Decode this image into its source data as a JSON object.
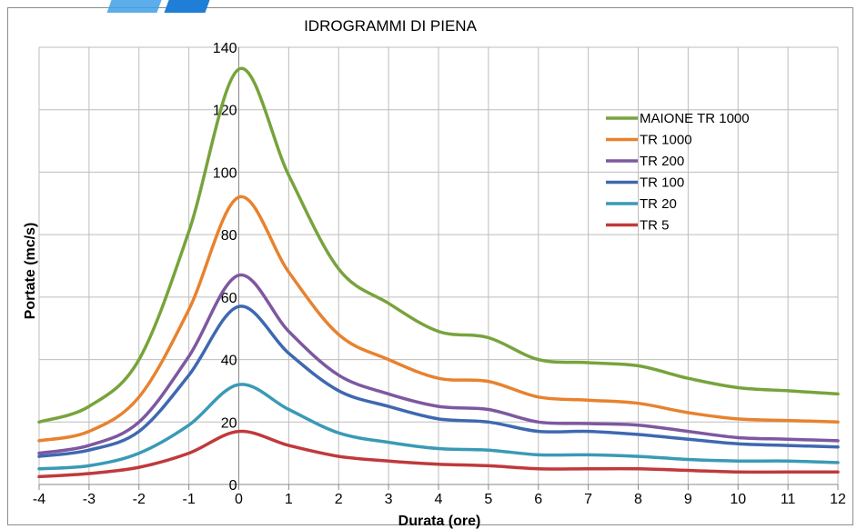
{
  "chart_data": {
    "type": "line",
    "title": "IDROGRAMMI DI PIENA",
    "xlabel": "Durata (ore)",
    "ylabel": "Portate (mc/s)",
    "xlim": [
      -4,
      12
    ],
    "ylim": [
      0,
      140
    ],
    "x_ticks": [
      "-4",
      "-3",
      "-2",
      "-1",
      "0",
      "1",
      "2",
      "3",
      "4",
      "5",
      "6",
      "7",
      "8",
      "9",
      "10",
      "11",
      "12"
    ],
    "y_ticks": [
      "0",
      "20",
      "40",
      "60",
      "80",
      "100",
      "120",
      "140"
    ],
    "grid": true,
    "legend_position": "top-right",
    "x": [
      -4,
      -3,
      -2,
      -1,
      0,
      1,
      2,
      3,
      4,
      5,
      6,
      7,
      8,
      9,
      10,
      11,
      12
    ],
    "series": [
      {
        "name": "MAIONE TR 1000",
        "color": "#77a33c",
        "values": [
          20,
          25,
          40,
          81,
          133,
          99,
          69,
          58,
          49,
          47,
          40,
          39,
          38,
          34,
          31,
          30,
          29
        ]
      },
      {
        "name": "TR 1000",
        "color": "#e8822e",
        "values": [
          14,
          17,
          28,
          56,
          92,
          68,
          48,
          40,
          34,
          33,
          28,
          27,
          26,
          23,
          21,
          20.5,
          20
        ]
      },
      {
        "name": "TR 200",
        "color": "#7d58a0",
        "values": [
          10,
          12.5,
          20,
          41,
          67,
          49,
          35,
          29,
          25,
          24,
          20,
          19.5,
          19,
          17,
          15,
          14.5,
          14
        ]
      },
      {
        "name": "TR 100",
        "color": "#3e68b0",
        "values": [
          9,
          11,
          17,
          35,
          57,
          42,
          30,
          25,
          21,
          20,
          17,
          17,
          16,
          14.5,
          13,
          12.5,
          12
        ]
      },
      {
        "name": "TR 20",
        "color": "#3a9ab5",
        "values": [
          5,
          6,
          10,
          19,
          32,
          24,
          16.5,
          13.5,
          11.5,
          11,
          9.5,
          9.5,
          9,
          8,
          7.5,
          7.5,
          7
        ]
      },
      {
        "name": "TR 5",
        "color": "#c0393b",
        "values": [
          2.5,
          3.5,
          5.5,
          10,
          17,
          12.5,
          9,
          7.5,
          6.5,
          6,
          5,
          5,
          5,
          4.5,
          4,
          4,
          4
        ]
      }
    ]
  }
}
